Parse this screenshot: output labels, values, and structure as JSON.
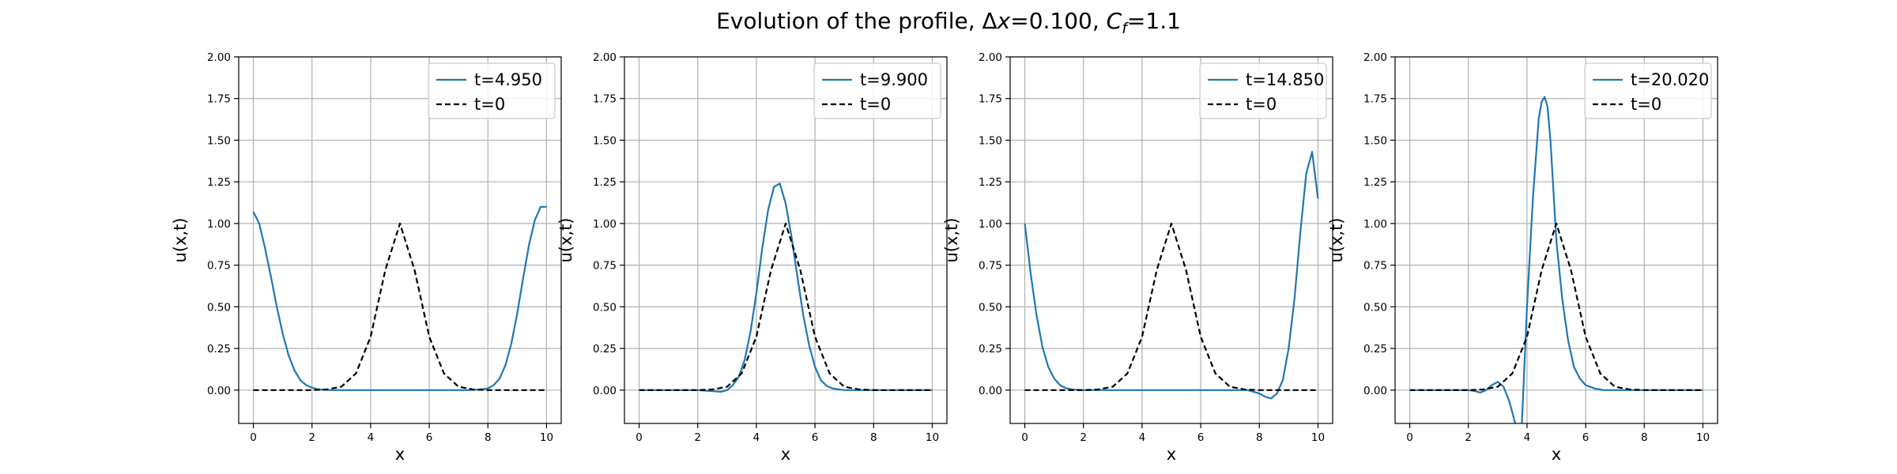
{
  "figure": {
    "title_prefix": "Evolution of the profile, Δ",
    "title_dx_symbol": "x",
    "title_dx_value": "=0.100, ",
    "title_cf_symbol": "C",
    "title_cf_sub": "f",
    "title_cf_value": "=1.1"
  },
  "chart_data": [
    {
      "type": "line",
      "xlabel": "x",
      "ylabel": "u(x,t)",
      "xlim": [
        -0.5,
        10.5
      ],
      "ylim": [
        -0.2,
        2.0
      ],
      "xticks": [
        0,
        2,
        4,
        6,
        8,
        10
      ],
      "yticks": [
        0.0,
        0.25,
        0.5,
        0.75,
        1.0,
        1.25,
        1.5,
        1.75,
        2.0
      ],
      "xtick_labels": [
        "0",
        "2",
        "4",
        "6",
        "8",
        "10"
      ],
      "ytick_labels": [
        "0.00",
        "0.25",
        "0.50",
        "0.75",
        "1.00",
        "1.25",
        "1.50",
        "1.75",
        "2.00"
      ],
      "grid": true,
      "legend": "top-right",
      "series": [
        {
          "name": "t=4.950",
          "color": "#1f77b4",
          "style": "solid",
          "x": [
            0,
            0.2,
            0.4,
            0.6,
            0.8,
            1.0,
            1.2,
            1.4,
            1.6,
            1.8,
            2.0,
            2.2,
            2.4,
            2.6,
            2.8,
            3.0,
            4.0,
            5.0,
            6.0,
            7.0,
            7.4,
            7.6,
            7.8,
            8.0,
            8.2,
            8.4,
            8.6,
            8.8,
            9.0,
            9.2,
            9.4,
            9.6,
            9.8,
            10.0
          ],
          "y": [
            1.07,
            1.0,
            0.85,
            0.68,
            0.5,
            0.34,
            0.21,
            0.12,
            0.06,
            0.03,
            0.015,
            0.005,
            0.002,
            0.0,
            0.0,
            0.0,
            0.0,
            0.0,
            0.0,
            0.0,
            0.0,
            0.002,
            0.005,
            0.01,
            0.03,
            0.07,
            0.15,
            0.28,
            0.46,
            0.67,
            0.87,
            1.02,
            1.1,
            1.1
          ]
        },
        {
          "name": "t=0",
          "color": "#000000",
          "style": "dashed",
          "x": [
            0,
            1.0,
            1.5,
            2.0,
            2.5,
            3.0,
            3.5,
            4.0,
            4.5,
            5.0,
            5.5,
            6.0,
            6.5,
            7.0,
            7.5,
            8.0,
            8.5,
            9.0,
            10.0
          ],
          "y": [
            0.0,
            0.0,
            0.0,
            0.0,
            0.004,
            0.02,
            0.1,
            0.32,
            0.72,
            1.0,
            0.72,
            0.32,
            0.1,
            0.02,
            0.004,
            0.0,
            0.0,
            0.0,
            0.0
          ]
        }
      ]
    },
    {
      "type": "line",
      "xlabel": "x",
      "ylabel": "u(x,t)",
      "xlim": [
        -0.5,
        10.5
      ],
      "ylim": [
        -0.2,
        2.0
      ],
      "xticks": [
        0,
        2,
        4,
        6,
        8,
        10
      ],
      "yticks": [
        0.0,
        0.25,
        0.5,
        0.75,
        1.0,
        1.25,
        1.5,
        1.75,
        2.0
      ],
      "xtick_labels": [
        "0",
        "2",
        "4",
        "6",
        "8",
        "10"
      ],
      "ytick_labels": [
        "0.00",
        "0.25",
        "0.50",
        "0.75",
        "1.00",
        "1.25",
        "1.50",
        "1.75",
        "2.00"
      ],
      "grid": true,
      "legend": "top-right",
      "series": [
        {
          "name": "t=9.900",
          "color": "#1f77b4",
          "style": "solid",
          "x": [
            0,
            2.0,
            2.8,
            3.0,
            3.2,
            3.4,
            3.6,
            3.8,
            4.0,
            4.2,
            4.4,
            4.6,
            4.8,
            5.0,
            5.2,
            5.4,
            5.6,
            5.8,
            6.0,
            6.2,
            6.4,
            6.6,
            7.0,
            8.0,
            10.0
          ],
          "y": [
            0.0,
            0.0,
            -0.01,
            0.0,
            0.03,
            0.08,
            0.18,
            0.35,
            0.58,
            0.85,
            1.08,
            1.22,
            1.24,
            1.12,
            0.92,
            0.68,
            0.45,
            0.27,
            0.14,
            0.06,
            0.025,
            0.01,
            0.0,
            0.0,
            0.0
          ]
        },
        {
          "name": "t=0",
          "color": "#000000",
          "style": "dashed",
          "x": [
            0,
            1.0,
            1.5,
            2.0,
            2.5,
            3.0,
            3.5,
            4.0,
            4.5,
            5.0,
            5.5,
            6.0,
            6.5,
            7.0,
            7.5,
            8.0,
            8.5,
            9.0,
            10.0
          ],
          "y": [
            0.0,
            0.0,
            0.0,
            0.0,
            0.004,
            0.02,
            0.1,
            0.32,
            0.72,
            1.0,
            0.72,
            0.32,
            0.1,
            0.02,
            0.004,
            0.0,
            0.0,
            0.0,
            0.0
          ]
        }
      ]
    },
    {
      "type": "line",
      "xlabel": "x",
      "ylabel": "u(x,t)",
      "xlim": [
        -0.5,
        10.5
      ],
      "ylim": [
        -0.2,
        2.0
      ],
      "xticks": [
        0,
        2,
        4,
        6,
        8,
        10
      ],
      "yticks": [
        0.0,
        0.25,
        0.5,
        0.75,
        1.0,
        1.25,
        1.5,
        1.75,
        2.0
      ],
      "xtick_labels": [
        "0",
        "2",
        "4",
        "6",
        "8",
        "10"
      ],
      "ytick_labels": [
        "0.00",
        "0.25",
        "0.50",
        "0.75",
        "1.00",
        "1.25",
        "1.50",
        "1.75",
        "2.00"
      ],
      "grid": true,
      "legend": "top-right",
      "series": [
        {
          "name": "t=14.850",
          "color": "#1f77b4",
          "style": "solid",
          "x": [
            0,
            0.2,
            0.4,
            0.6,
            0.8,
            1.0,
            1.2,
            1.4,
            1.6,
            2.0,
            3.0,
            5.0,
            7.0,
            7.6,
            7.8,
            8.0,
            8.2,
            8.4,
            8.6,
            8.8,
            9.0,
            9.2,
            9.4,
            9.6,
            9.8,
            10.0
          ],
          "y": [
            1.0,
            0.7,
            0.45,
            0.26,
            0.14,
            0.07,
            0.03,
            0.012,
            0.004,
            0.0,
            0.0,
            0.0,
            0.0,
            0.0,
            -0.01,
            -0.02,
            -0.04,
            -0.05,
            -0.02,
            0.06,
            0.25,
            0.55,
            0.95,
            1.3,
            1.43,
            1.15
          ]
        },
        {
          "name": "t=0",
          "color": "#000000",
          "style": "dashed",
          "x": [
            0,
            1.0,
            1.5,
            2.0,
            2.5,
            3.0,
            3.5,
            4.0,
            4.5,
            5.0,
            5.5,
            6.0,
            6.5,
            7.0,
            7.5,
            8.0,
            8.5,
            9.0,
            10.0
          ],
          "y": [
            0.0,
            0.0,
            0.0,
            0.0,
            0.004,
            0.02,
            0.1,
            0.32,
            0.72,
            1.0,
            0.72,
            0.32,
            0.1,
            0.02,
            0.004,
            0.0,
            0.0,
            0.0,
            0.0
          ]
        }
      ]
    },
    {
      "type": "line",
      "xlabel": "x",
      "ylabel": "u(x,t)",
      "xlim": [
        -0.5,
        10.5
      ],
      "ylim": [
        -0.2,
        2.0
      ],
      "xticks": [
        0,
        2,
        4,
        6,
        8,
        10
      ],
      "yticks": [
        0.0,
        0.25,
        0.5,
        0.75,
        1.0,
        1.25,
        1.5,
        1.75,
        2.0
      ],
      "xtick_labels": [
        "0",
        "2",
        "4",
        "6",
        "8",
        "10"
      ],
      "ytick_labels": [
        "0.00",
        "0.25",
        "0.50",
        "0.75",
        "1.00",
        "1.25",
        "1.50",
        "1.75",
        "2.00"
      ],
      "grid": true,
      "legend": "top-right",
      "series": [
        {
          "name": "t=20.020",
          "color": "#1f77b4",
          "style": "solid",
          "x": [
            0,
            1.5,
            2.0,
            2.2,
            2.4,
            2.6,
            2.8,
            3.0,
            3.2,
            3.4,
            3.6,
            3.8,
            3.9,
            4.0,
            4.2,
            4.4,
            4.5,
            4.6,
            4.7,
            4.8,
            4.9,
            5.0,
            5.2,
            5.4,
            5.6,
            5.8,
            6.0,
            6.3,
            6.6,
            7.0,
            8.0,
            10.0
          ],
          "y": [
            0.0,
            0.0,
            0.0,
            -0.005,
            -0.015,
            0.0,
            0.03,
            0.05,
            0.02,
            -0.07,
            -0.2,
            -0.3,
            0.1,
            0.5,
            1.15,
            1.63,
            1.73,
            1.76,
            1.7,
            1.5,
            1.2,
            0.9,
            0.55,
            0.3,
            0.14,
            0.07,
            0.03,
            0.01,
            0.0,
            0.0,
            0.0,
            0.0
          ]
        },
        {
          "name": "t=0",
          "color": "#000000",
          "style": "dashed",
          "x": [
            0,
            1.0,
            1.5,
            2.0,
            2.5,
            3.0,
            3.5,
            4.0,
            4.5,
            5.0,
            5.5,
            6.0,
            6.5,
            7.0,
            7.5,
            8.0,
            8.5,
            9.0,
            10.0
          ],
          "y": [
            0.0,
            0.0,
            0.0,
            0.0,
            0.004,
            0.02,
            0.1,
            0.32,
            0.72,
            1.0,
            0.72,
            0.32,
            0.1,
            0.02,
            0.004,
            0.0,
            0.0,
            0.0,
            0.0
          ]
        }
      ]
    }
  ]
}
